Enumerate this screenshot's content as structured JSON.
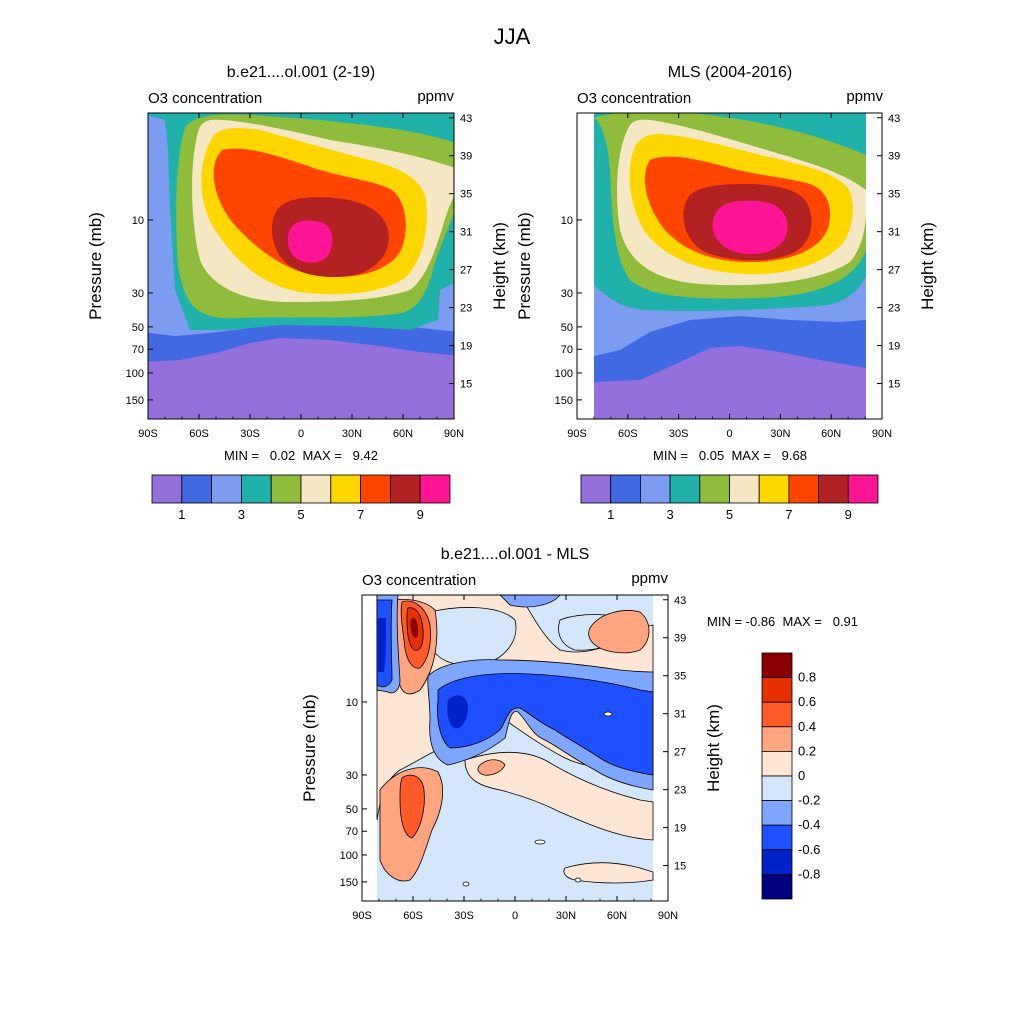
{
  "figure": {
    "title": "JJA",
    "title_pos": "top-center"
  },
  "panels": [
    {
      "title": "b.e21....ol.001 (2-19)",
      "left_label": "O3 concentration",
      "right_label": "ppmv",
      "stats": "MIN =   0.02  MAX =   9.42"
    },
    {
      "title": "MLS (2004-2016)",
      "left_label": "O3 concentration",
      "right_label": "ppmv",
      "stats": "MIN =   0.05  MAX =   9.68"
    },
    {
      "title": "b.e21....ol.001 - MLS",
      "left_label": "O3 concentration",
      "right_label": "ppmv",
      "stats": "MIN = -0.86  MAX =   0.91"
    }
  ],
  "axes": {
    "y_left_label": "Pressure (mb)",
    "y_right_label": "Height (km)",
    "lat_ticks": [
      "90S",
      "60S",
      "30S",
      "0",
      "30N",
      "60N",
      "90N"
    ],
    "lat_values": [
      -90,
      -60,
      -30,
      0,
      30,
      60,
      90
    ],
    "pressure_ticks": [
      10,
      30,
      50,
      70,
      100,
      150
    ],
    "pressure_labels": [
      "10",
      "30",
      "50",
      "70",
      "100",
      "150"
    ],
    "height_ticks": [
      43,
      39,
      35,
      31,
      27,
      23,
      19,
      15
    ],
    "height_labels": [
      "43",
      "39",
      "35",
      "31",
      "27",
      "23",
      "19",
      "15"
    ]
  },
  "colorbar_abs": {
    "orientation": "horizontal",
    "levels": [
      1,
      2,
      3,
      4,
      5,
      6,
      7,
      8,
      9
    ],
    "labels": [
      "1",
      "3",
      "5",
      "7",
      "9"
    ],
    "label_values": [
      1,
      3,
      5,
      7,
      9
    ],
    "colors": [
      "#9370db",
      "#4169e1",
      "#7b9cf0",
      "#20b2aa",
      "#8fbc3a",
      "#f5e6c4",
      "#ffd700",
      "#ff4500",
      "#b22222",
      "#ff1493"
    ]
  },
  "colorbar_diff": {
    "orientation": "vertical",
    "levels": [
      -0.8,
      -0.6,
      -0.4,
      -0.2,
      0,
      0.2,
      0.4,
      0.6,
      0.8
    ],
    "labels": [
      "0.8",
      "0.6",
      "0.4",
      "0.2",
      "0",
      "-0.2",
      "-0.4",
      "-0.6",
      "-0.8"
    ],
    "colors": [
      "#000080",
      "#0022c8",
      "#1e50ff",
      "#7fa6ff",
      "#d4e6fa",
      "#fde7d4",
      "#ffa57f",
      "#ff5a28",
      "#e63000",
      "#8b0000"
    ]
  },
  "chart_data": [
    {
      "type": "heatmap",
      "title": "b.e21....ol.001 (2-19)",
      "subtitle": "O3 concentration (ppmv)",
      "xlabel": "",
      "ylabel": "Pressure (mb)",
      "y2label": "Height (km)",
      "xlim": [
        -90,
        90
      ],
      "ylim_pressure_mb": [
        200,
        2
      ],
      "contour_levels": [
        1,
        2,
        3,
        4,
        5,
        6,
        7,
        8,
        9
      ],
      "min": 0.02,
      "max": 9.42,
      "peak": {
        "lat": 10,
        "pressure_mb": 10,
        "value": 9.42
      }
    },
    {
      "type": "heatmap",
      "title": "MLS (2004-2016)",
      "subtitle": "O3 concentration (ppmv)",
      "xlabel": "",
      "ylabel": "Pressure (mb)",
      "y2label": "Height (km)",
      "xlim": [
        -90,
        90
      ],
      "ylim_pressure_mb": [
        200,
        2
      ],
      "data_lat_range": [
        -82,
        82
      ],
      "contour_levels": [
        1,
        2,
        3,
        4,
        5,
        6,
        7,
        8,
        9
      ],
      "min": 0.05,
      "max": 9.68,
      "peak": {
        "lat": 10,
        "pressure_mb": 10,
        "value": 9.68
      }
    },
    {
      "type": "heatmap",
      "title": "b.e21....ol.001 - MLS",
      "subtitle": "O3 concentration (ppmv)",
      "xlabel": "",
      "ylabel": "Pressure (mb)",
      "y2label": "Height (km)",
      "xlim": [
        -90,
        90
      ],
      "ylim_pressure_mb": [
        200,
        2
      ],
      "data_lat_range": [
        -80,
        80
      ],
      "contour_levels": [
        -0.8,
        -0.6,
        -0.4,
        -0.2,
        0,
        0.2,
        0.4,
        0.6,
        0.8
      ],
      "min": -0.86,
      "max": 0.91,
      "features": [
        {
          "lat": -62,
          "pressure_mb": 4,
          "sign": "positive"
        },
        {
          "lat": -62,
          "pressure_mb": 40,
          "sign": "positive"
        },
        {
          "lat": -85,
          "pressure_mb": 6,
          "sign": "negative"
        },
        {
          "lat": 30,
          "pressure_mb": 10,
          "sign": "negative"
        }
      ]
    }
  ]
}
